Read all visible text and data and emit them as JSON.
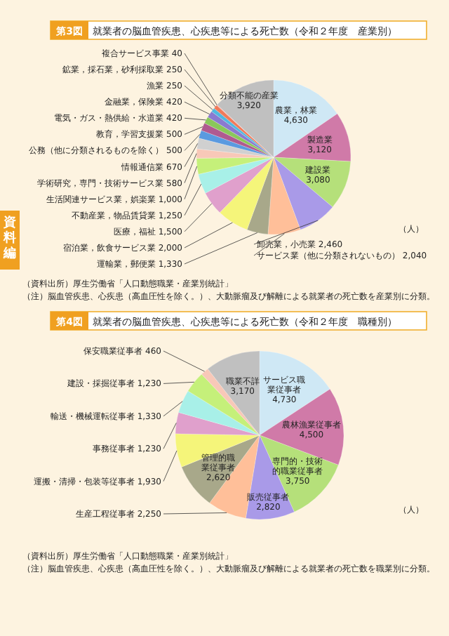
{
  "chart_data": [
    {
      "type": "pie",
      "title": "第3図　就業者の脳血管疾患、心疾患等による死亡数（令和２年度　産業別）",
      "categories": [
        "農業，林業",
        "製造業",
        "建設業",
        "卸売業，小売業",
        "サービス業（他に分類されないもの）",
        "運輸業，郵便業",
        "宿泊業，飲食サービス業",
        "医療，福祉",
        "不動産業，物品賃貸業",
        "生活関連サービス業，娯楽業",
        "学術研究，専門・技術サービス業",
        "情報通信業",
        "公務（他に分類されるものを除く）",
        "教育，学習支援業",
        "電気・ガス・熱供給・水道業",
        "金融業，保険業",
        "漁業",
        "鉱業，採石業，砂利採取業",
        "複合サービス事業",
        "分類不能の産業"
      ],
      "values": [
        4630,
        3120,
        3080,
        2460,
        2040,
        1330,
        2000,
        1500,
        1250,
        1000,
        580,
        670,
        500,
        500,
        420,
        420,
        250,
        250,
        40,
        3920
      ],
      "value_labels": [
        "4,630",
        "3,120",
        "3,080",
        "2,460",
        "2,040",
        "1,330",
        "2,000",
        "1,500",
        "1,250",
        "1,000",
        "580",
        "670",
        "500",
        "500",
        "420",
        "420",
        "250",
        "250",
        "40",
        "3,920"
      ],
      "colors": [
        "#cfe8f5",
        "#d07aa8",
        "#b5e07a",
        "#a99ae8",
        "#ffbf99",
        "#a8a88a",
        "#f5f57a",
        "#e0a0cc",
        "#a8f0e8",
        "#c5f07a",
        "#f8c8b8",
        "#d0d0d0",
        "#5a9ae0",
        "#b05a90",
        "#8ac85a",
        "#8a7ad0",
        "#50b8e0",
        "#f07a5a",
        "#f0a0a0",
        "#c0c0c0"
      ],
      "annotations": [
        "（人）",
        "（資料出所）厚生労働省「人口動態職業・産業別統計」",
        "（注）脳血管疾患、心疾患（高血圧性を除く。）、大動脈瘤及び解離による就業者の死亡数を産業別に分類。",
        "資料編"
      ]
    },
    {
      "type": "pie",
      "title": "第4図　就業者の脳血管疾患、心疾患等による死亡数（令和２年度　職種別）",
      "categories": [
        "サービス職業従事者",
        "農林漁業従事者",
        "専門的・技術的職業従事者",
        "販売従事者",
        "生産工程従事者",
        "管理的職業従事者",
        "運搬・清掃・包装等従事者",
        "事務従事者",
        "輸送・機械運転従事者",
        "建設・採掘従事者",
        "保安職業従事者",
        "職業不詳"
      ],
      "values": [
        4730,
        4500,
        3750,
        2820,
        2250,
        2620,
        1930,
        1230,
        1330,
        1230,
        460,
        3170
      ],
      "value_labels": [
        "4,730",
        "4,500",
        "3,750",
        "2,820",
        "2,250",
        "2,620",
        "1,930",
        "1,230",
        "1,330",
        "1,230",
        "460",
        "3,170"
      ],
      "colors": [
        "#cfe8f5",
        "#d07aa8",
        "#b5e07a",
        "#a99ae8",
        "#ffbf99",
        "#a8a88a",
        "#f5f57a",
        "#e0a0cc",
        "#a8f0e8",
        "#c5f07a",
        "#f8c8b8",
        "#c0c0c0"
      ],
      "annotations": [
        "（人）",
        "（資料出所）厚生労働省「人口動態職業・産業別統計」",
        "（注）脳血管疾患、心疾患（高血圧性を除く。）、大動脈瘤及び解離による就業者の死亡数を職業別に分類。"
      ]
    }
  ]
}
